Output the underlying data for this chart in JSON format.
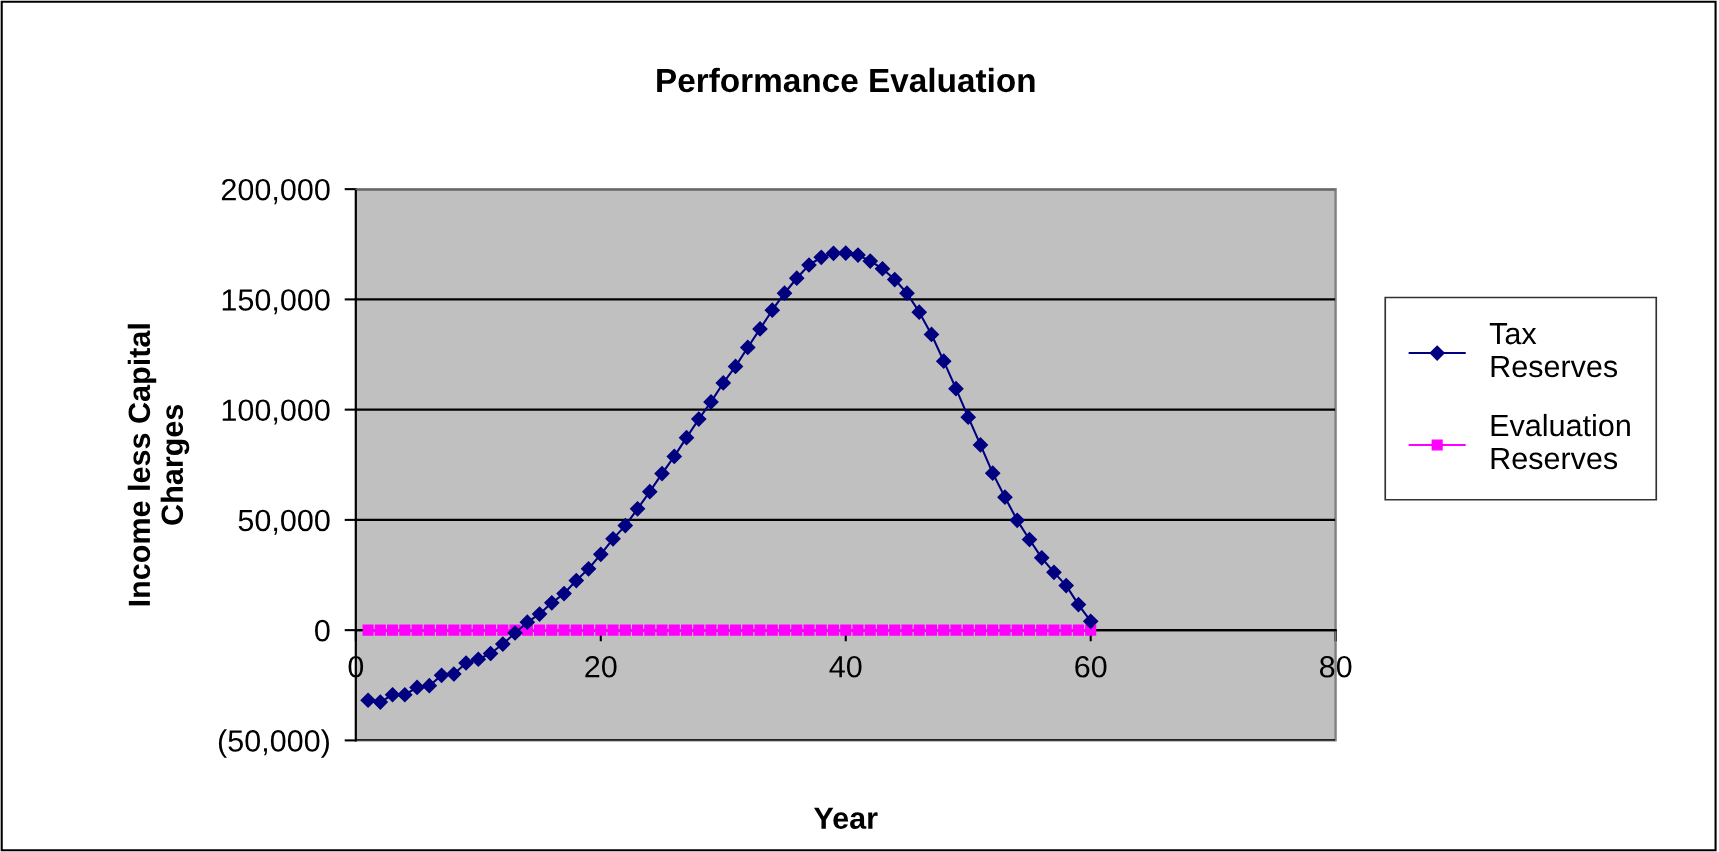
{
  "chart_data": {
    "type": "line",
    "title": "Performance Evaluation",
    "xlabel": "Year",
    "ylabel": "Income less Capital\nCharges",
    "x": [
      1,
      2,
      3,
      4,
      5,
      6,
      7,
      8,
      9,
      10,
      11,
      12,
      13,
      14,
      15,
      16,
      17,
      18,
      19,
      20,
      21,
      22,
      23,
      24,
      25,
      26,
      27,
      28,
      29,
      30,
      31,
      32,
      33,
      34,
      35,
      36,
      37,
      38,
      39,
      40,
      41,
      42,
      43,
      44,
      45,
      46,
      47,
      48,
      49,
      50,
      51,
      52,
      53,
      54,
      55,
      56,
      57,
      58,
      59,
      60
    ],
    "series": [
      {
        "name": "Tax\nReserves",
        "color": "#000080",
        "marker": "diamond",
        "values": [
          -31800,
          -32600,
          -29300,
          -29300,
          -26000,
          -25200,
          -20500,
          -19900,
          -14900,
          -13200,
          -10600,
          -6300,
          -1300,
          3600,
          7300,
          12400,
          16600,
          22500,
          27800,
          34400,
          41400,
          47400,
          55000,
          62800,
          71000,
          78800,
          87300,
          95700,
          103500,
          112100,
          119600,
          128200,
          136600,
          145100,
          152800,
          159600,
          165600,
          169100,
          170900,
          171000,
          170100,
          167400,
          163900,
          159000,
          152800,
          144200,
          134100,
          122000,
          109500,
          96600,
          84000,
          71200,
          60300,
          49800,
          41100,
          32800,
          26200,
          20200,
          11600,
          4000
        ]
      },
      {
        "name": "Evaluation\nReserves",
        "color": "#ff00ff",
        "marker": "square",
        "values": [
          0,
          0,
          0,
          0,
          0,
          0,
          0,
          0,
          0,
          0,
          0,
          0,
          0,
          0,
          0,
          0,
          0,
          0,
          0,
          0,
          0,
          0,
          0,
          0,
          0,
          0,
          0,
          0,
          0,
          0,
          0,
          0,
          0,
          0,
          0,
          0,
          0,
          0,
          0,
          0,
          0,
          0,
          0,
          0,
          0,
          0,
          0,
          0,
          0,
          0,
          0,
          0,
          0,
          0,
          0,
          0,
          0,
          0,
          0,
          0
        ]
      }
    ],
    "xlim": [
      0,
      80
    ],
    "xticks": [
      0,
      20,
      40,
      60,
      80
    ],
    "ylim": [
      -50000,
      200000
    ],
    "yticks": [
      {
        "value": -50000,
        "label": "(50,000)"
      },
      {
        "value": 0,
        "label": "0"
      },
      {
        "value": 50000,
        "label": "50,000"
      },
      {
        "value": 100000,
        "label": "100,000"
      },
      {
        "value": 150000,
        "label": "150,000"
      },
      {
        "value": 200000,
        "label": "200,000"
      }
    ],
    "grid": "y",
    "legend": "right",
    "line_style": "solid"
  }
}
